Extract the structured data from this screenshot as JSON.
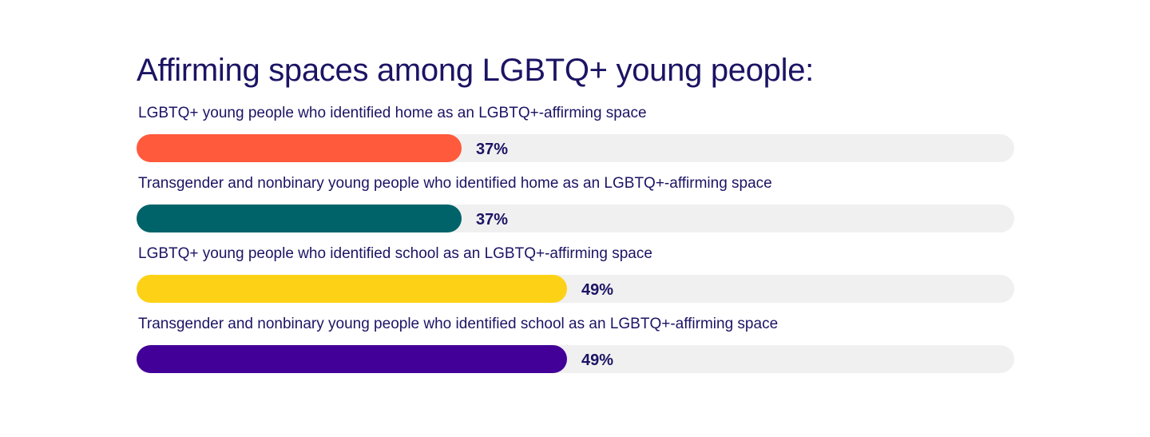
{
  "chart_data": {
    "type": "bar",
    "orientation": "horizontal",
    "title": "Affirming spaces among LGBTQ+ young people:",
    "xlim": [
      0,
      100
    ],
    "grid": false,
    "categories": [
      "LGBTQ+ young people who identified home as an LGBTQ+-affirming space",
      "Transgender and nonbinary young people who identified home as an LGBTQ+-affirming space",
      "LGBTQ+ young people who identified school as an LGBTQ+-affirming space",
      "Transgender and nonbinary young people who identified school as an LGBTQ+-affirming space"
    ],
    "values": [
      37,
      37,
      49,
      49
    ],
    "value_labels": [
      "37%",
      "37%",
      "49%",
      "49%"
    ],
    "colors": [
      "#ff5a3c",
      "#00636a",
      "#fdd216",
      "#430098"
    ],
    "track_color": "#f0f0f0"
  }
}
